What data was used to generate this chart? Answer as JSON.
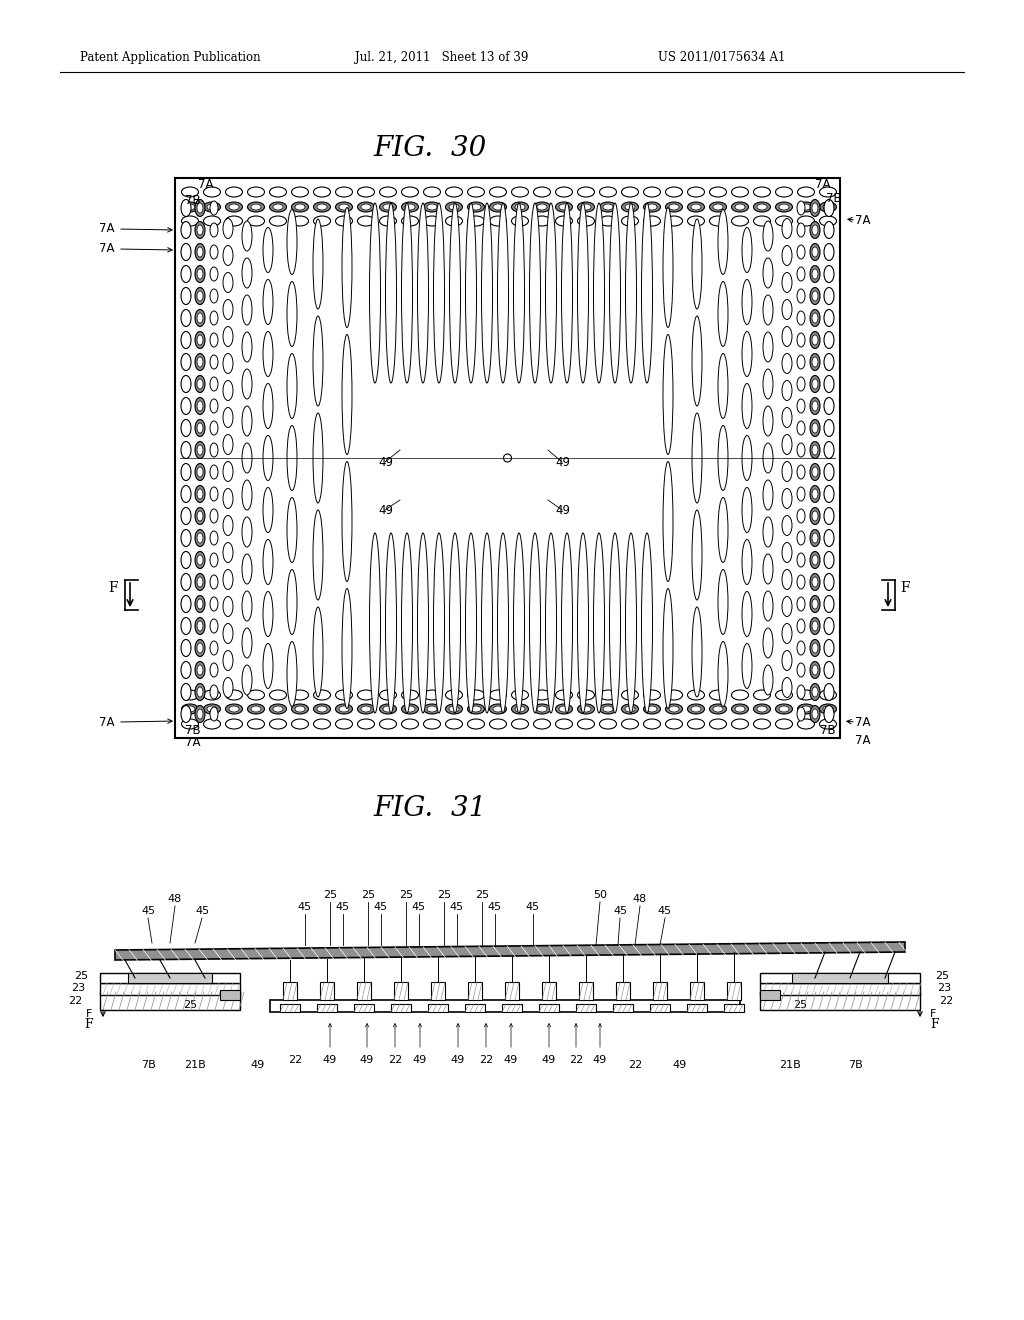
{
  "bg_color": "#ffffff",
  "header_left": "Patent Application Publication",
  "header_center": "Jul. 21, 2011   Sheet 13 of 39",
  "header_right": "US 2011/0175634 A1",
  "fig30_title": "FIG.  30",
  "fig31_title": "FIG.  31"
}
